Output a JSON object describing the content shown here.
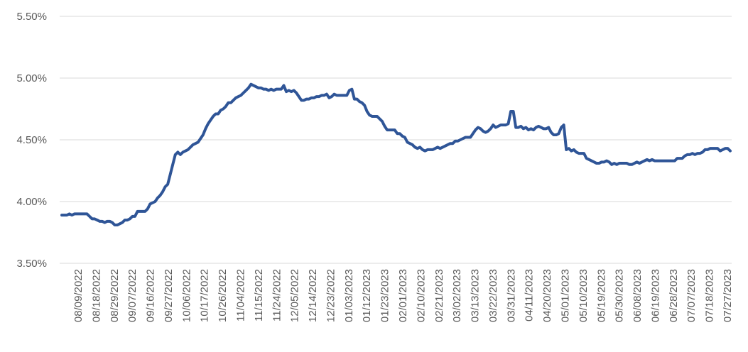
{
  "chart_data": {
    "type": "line",
    "title": "",
    "xlabel": "",
    "ylabel": "",
    "ylim": [
      3.5,
      5.5
    ],
    "y_ticks": [
      3.5,
      4.0,
      4.5,
      5.0,
      5.5
    ],
    "y_tick_labels": [
      "3.50%",
      "4.00%",
      "4.50%",
      "5.00%",
      "5.50%"
    ],
    "x_tick_labels": [
      "08/09/2022",
      "08/18/2022",
      "08/29/2022",
      "09/07/2022",
      "09/16/2022",
      "09/27/2022",
      "10/06/2022",
      "10/17/2022",
      "10/26/2022",
      "11/04/2022",
      "11/15/2022",
      "11/24/2022",
      "12/05/2022",
      "12/14/2022",
      "12/23/2022",
      "01/03/2023",
      "01/12/2023",
      "01/23/2023",
      "02/01/2023",
      "02/10/2023",
      "02/21/2023",
      "03/02/2023",
      "03/13/2023",
      "03/22/2023",
      "03/31/2023",
      "04/11/2023",
      "04/20/2023",
      "05/01/2023",
      "05/10/2023",
      "05/19/2023",
      "05/30/2023",
      "06/08/2023",
      "06/19/2023",
      "06/28/2023",
      "07/07/2023",
      "07/18/2023",
      "07/27/2023"
    ],
    "grid": true,
    "legend": "none",
    "series": [
      {
        "color": "#2f5597",
        "values": [
          3.89,
          3.89,
          3.89,
          3.9,
          3.89,
          3.9,
          3.9,
          3.9,
          3.9,
          3.9,
          3.9,
          3.88,
          3.86,
          3.86,
          3.85,
          3.84,
          3.84,
          3.83,
          3.84,
          3.84,
          3.83,
          3.81,
          3.81,
          3.82,
          3.83,
          3.85,
          3.85,
          3.86,
          3.88,
          3.88,
          3.92,
          3.92,
          3.92,
          3.92,
          3.94,
          3.98,
          3.99,
          4.0,
          4.03,
          4.05,
          4.08,
          4.12,
          4.14,
          4.22,
          4.3,
          4.38,
          4.4,
          4.38,
          4.4,
          4.41,
          4.42,
          4.44,
          4.46,
          4.47,
          4.48,
          4.51,
          4.54,
          4.59,
          4.63,
          4.66,
          4.69,
          4.71,
          4.71,
          4.74,
          4.75,
          4.77,
          4.8,
          4.8,
          4.82,
          4.84,
          4.85,
          4.86,
          4.88,
          4.9,
          4.92,
          4.95,
          4.94,
          4.93,
          4.92,
          4.92,
          4.91,
          4.91,
          4.9,
          4.91,
          4.9,
          4.91,
          4.91,
          4.91,
          4.94,
          4.89,
          4.9,
          4.89,
          4.9,
          4.88,
          4.85,
          4.82,
          4.82,
          4.83,
          4.83,
          4.84,
          4.84,
          4.85,
          4.85,
          4.86,
          4.86,
          4.87,
          4.84,
          4.85,
          4.87,
          4.86,
          4.86,
          4.86,
          4.86,
          4.86,
          4.9,
          4.91,
          4.83,
          4.83,
          4.81,
          4.8,
          4.78,
          4.73,
          4.7,
          4.69,
          4.69,
          4.69,
          4.67,
          4.65,
          4.61,
          4.58,
          4.58,
          4.58,
          4.58,
          4.55,
          4.55,
          4.53,
          4.52,
          4.48,
          4.47,
          4.46,
          4.44,
          4.43,
          4.44,
          4.42,
          4.41,
          4.42,
          4.42,
          4.42,
          4.43,
          4.44,
          4.43,
          4.44,
          4.45,
          4.46,
          4.47,
          4.47,
          4.49,
          4.49,
          4.5,
          4.51,
          4.52,
          4.52,
          4.52,
          4.55,
          4.58,
          4.6,
          4.59,
          4.57,
          4.56,
          4.57,
          4.59,
          4.62,
          4.6,
          4.61,
          4.62,
          4.62,
          4.62,
          4.63,
          4.73,
          4.73,
          4.6,
          4.6,
          4.61,
          4.59,
          4.6,
          4.58,
          4.59,
          4.58,
          4.6,
          4.61,
          4.6,
          4.59,
          4.59,
          4.6,
          4.56,
          4.54,
          4.54,
          4.55,
          4.6,
          4.62,
          4.42,
          4.43,
          4.41,
          4.42,
          4.4,
          4.39,
          4.39,
          4.39,
          4.35,
          4.34,
          4.33,
          4.32,
          4.31,
          4.31,
          4.32,
          4.32,
          4.33,
          4.32,
          4.3,
          4.31,
          4.3,
          4.31,
          4.31,
          4.31,
          4.31,
          4.3,
          4.3,
          4.31,
          4.32,
          4.31,
          4.32,
          4.33,
          4.34,
          4.33,
          4.34,
          4.33,
          4.33,
          4.33,
          4.33,
          4.33,
          4.33,
          4.33,
          4.33,
          4.33,
          4.35,
          4.35,
          4.35,
          4.37,
          4.38,
          4.38,
          4.39,
          4.38,
          4.39,
          4.39,
          4.4,
          4.42,
          4.42,
          4.43,
          4.43,
          4.43,
          4.43,
          4.41,
          4.42,
          4.43,
          4.43,
          4.41
        ]
      }
    ]
  }
}
